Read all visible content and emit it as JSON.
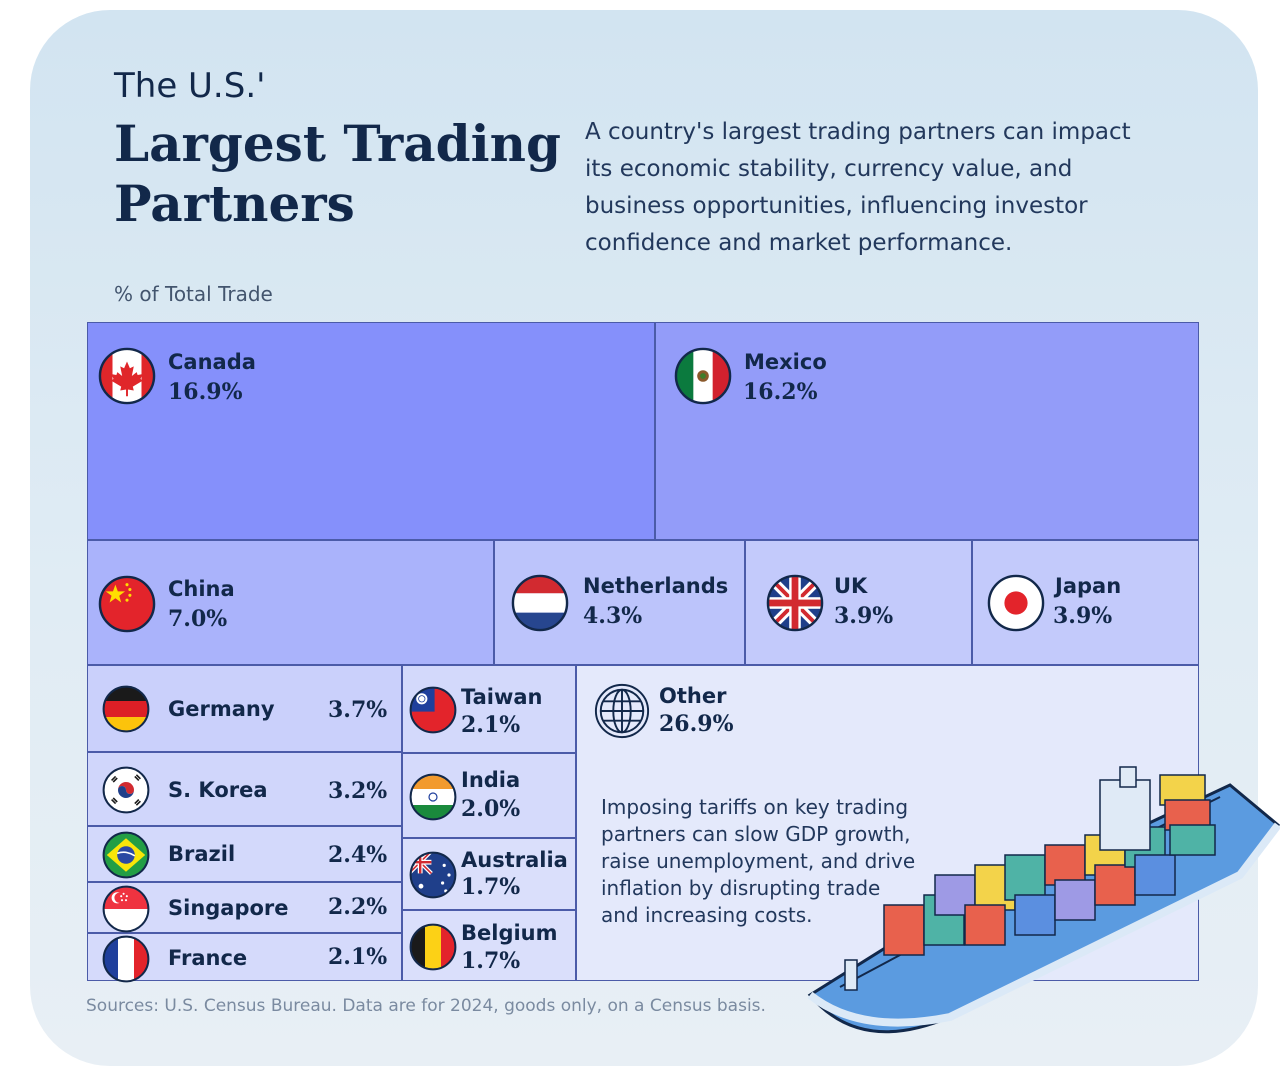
{
  "header": {
    "title_line1": "The U.S.'",
    "title_line2": "Largest Trading",
    "title_line3": "Partners",
    "intro": "A country's largest trading partners can impact its economic stability, currency value, and business opportunities, influencing investor confidence and market performance."
  },
  "unit_label": "% of Total Trade",
  "chart_data": {
    "type": "treemap",
    "title": "The U.S.' Largest Trading Partners",
    "value_label": "% of Total Trade",
    "items": [
      {
        "name": "Canada",
        "label": "16.9%",
        "value": 16.9,
        "color": "#8590fb"
      },
      {
        "name": "Mexico",
        "label": "16.2%",
        "value": 16.2,
        "color": "#939cf9"
      },
      {
        "name": "China",
        "label": "7.0%",
        "value": 7.0,
        "color": "#aab3fb"
      },
      {
        "name": "Netherlands",
        "label": "4.3%",
        "value": 4.3,
        "color": "#bcc4fb"
      },
      {
        "name": "UK",
        "label": "3.9%",
        "value": 3.9,
        "color": "#c3cafb"
      },
      {
        "name": "Japan",
        "label": "3.9%",
        "value": 3.9,
        "color": "#c3cafb"
      },
      {
        "name": "Germany",
        "label": "3.7%",
        "value": 3.7,
        "color": "#cad0fb"
      },
      {
        "name": "S. Korea",
        "label": "3.2%",
        "value": 3.2,
        "color": "#d0d6fb"
      },
      {
        "name": "Brazil",
        "label": "2.4%",
        "value": 2.4,
        "color": "#d3d9fb"
      },
      {
        "name": "Singapore",
        "label": "2.2%",
        "value": 2.2,
        "color": "#d5dafb"
      },
      {
        "name": "France",
        "label": "2.1%",
        "value": 2.1,
        "color": "#d5dafb"
      },
      {
        "name": "Taiwan",
        "label": "2.1%",
        "value": 2.1,
        "color": "#d3d9fb"
      },
      {
        "name": "India",
        "label": "2.0%",
        "value": 2.0,
        "color": "#d5dafb"
      },
      {
        "name": "Australia",
        "label": "1.7%",
        "value": 1.7,
        "color": "#dadffb"
      },
      {
        "name": "Belgium",
        "label": "1.7%",
        "value": 1.7,
        "color": "#dadffb"
      },
      {
        "name": "Other",
        "label": "26.9%",
        "value": 26.9,
        "color": "#e4e9fb"
      }
    ]
  },
  "other_note": "Imposing tariffs on key trading partners can slow GDP growth, raise unemployment, and drive inflation by disrupting trade and increasing costs.",
  "source": "Sources: U.S. Census Bureau. Data are for 2024, goods only, on a Census basis.",
  "icons": [
    "canada-flag-icon",
    "mexico-flag-icon",
    "china-flag-icon",
    "netherlands-flag-icon",
    "uk-flag-icon",
    "japan-flag-icon",
    "germany-flag-icon",
    "south-korea-flag-icon",
    "brazil-flag-icon",
    "singapore-flag-icon",
    "france-flag-icon",
    "taiwan-flag-icon",
    "india-flag-icon",
    "australia-flag-icon",
    "belgium-flag-icon",
    "globe-icon",
    "cargo-ship-icon"
  ]
}
